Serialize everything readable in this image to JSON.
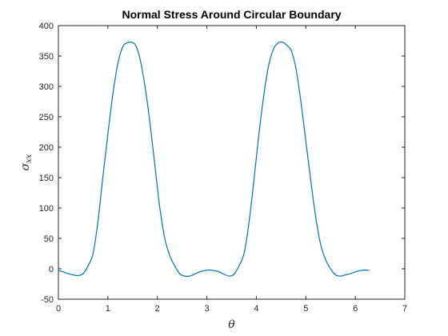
{
  "chart_data": {
    "type": "line",
    "title": "Normal Stress Around Circular Boundary",
    "xlabel": "θ",
    "ylabel": {
      "symbol": "σ",
      "subscript": "xx"
    },
    "xlim": [
      0,
      7
    ],
    "ylim": [
      -50,
      400
    ],
    "xticks": [
      0,
      1,
      2,
      3,
      4,
      5,
      6,
      7
    ],
    "yticks": [
      -50,
      0,
      50,
      100,
      150,
      200,
      250,
      300,
      350,
      400
    ],
    "grid": false,
    "line_color": "#0072BD",
    "series": [
      {
        "x": [
          0,
          0.1,
          0.2,
          0.3,
          0.4,
          0.5,
          0.6,
          0.7,
          0.8,
          0.9,
          1.0,
          1.1,
          1.2,
          1.3,
          1.4,
          1.5,
          1.57,
          1.65,
          1.75,
          1.85,
          1.95,
          2.05,
          2.15,
          2.25,
          2.35,
          2.45,
          2.55,
          2.65,
          2.75,
          2.85,
          2.95,
          3.05,
          3.14,
          3.25,
          3.35,
          3.45,
          3.55,
          3.65,
          3.75,
          3.85,
          3.95,
          4.05,
          4.15,
          4.25,
          4.35,
          4.45,
          4.55,
          4.65,
          4.71,
          4.8,
          4.9,
          5.0,
          5.1,
          5.2,
          5.3,
          5.4,
          5.5,
          5.6,
          5.7,
          5.8,
          5.9,
          6.0,
          6.1,
          6.2,
          6.28
        ],
        "y": [
          -3,
          -5,
          -8,
          -10,
          -11,
          -8,
          5,
          25,
          78,
          152,
          222,
          287,
          337,
          365,
          372,
          372,
          366,
          345,
          300,
          240,
          170,
          100,
          50,
          22,
          5,
          -8,
          -12,
          -12,
          -9,
          -5,
          -3,
          -2,
          -3,
          -5,
          -9,
          -12,
          -9,
          5,
          25,
          75,
          145,
          220,
          285,
          335,
          362,
          372,
          372,
          365,
          358,
          330,
          275,
          210,
          145,
          85,
          40,
          15,
          0,
          -10,
          -12,
          -10,
          -8,
          -5,
          -3,
          -2,
          -3
        ]
      }
    ]
  }
}
